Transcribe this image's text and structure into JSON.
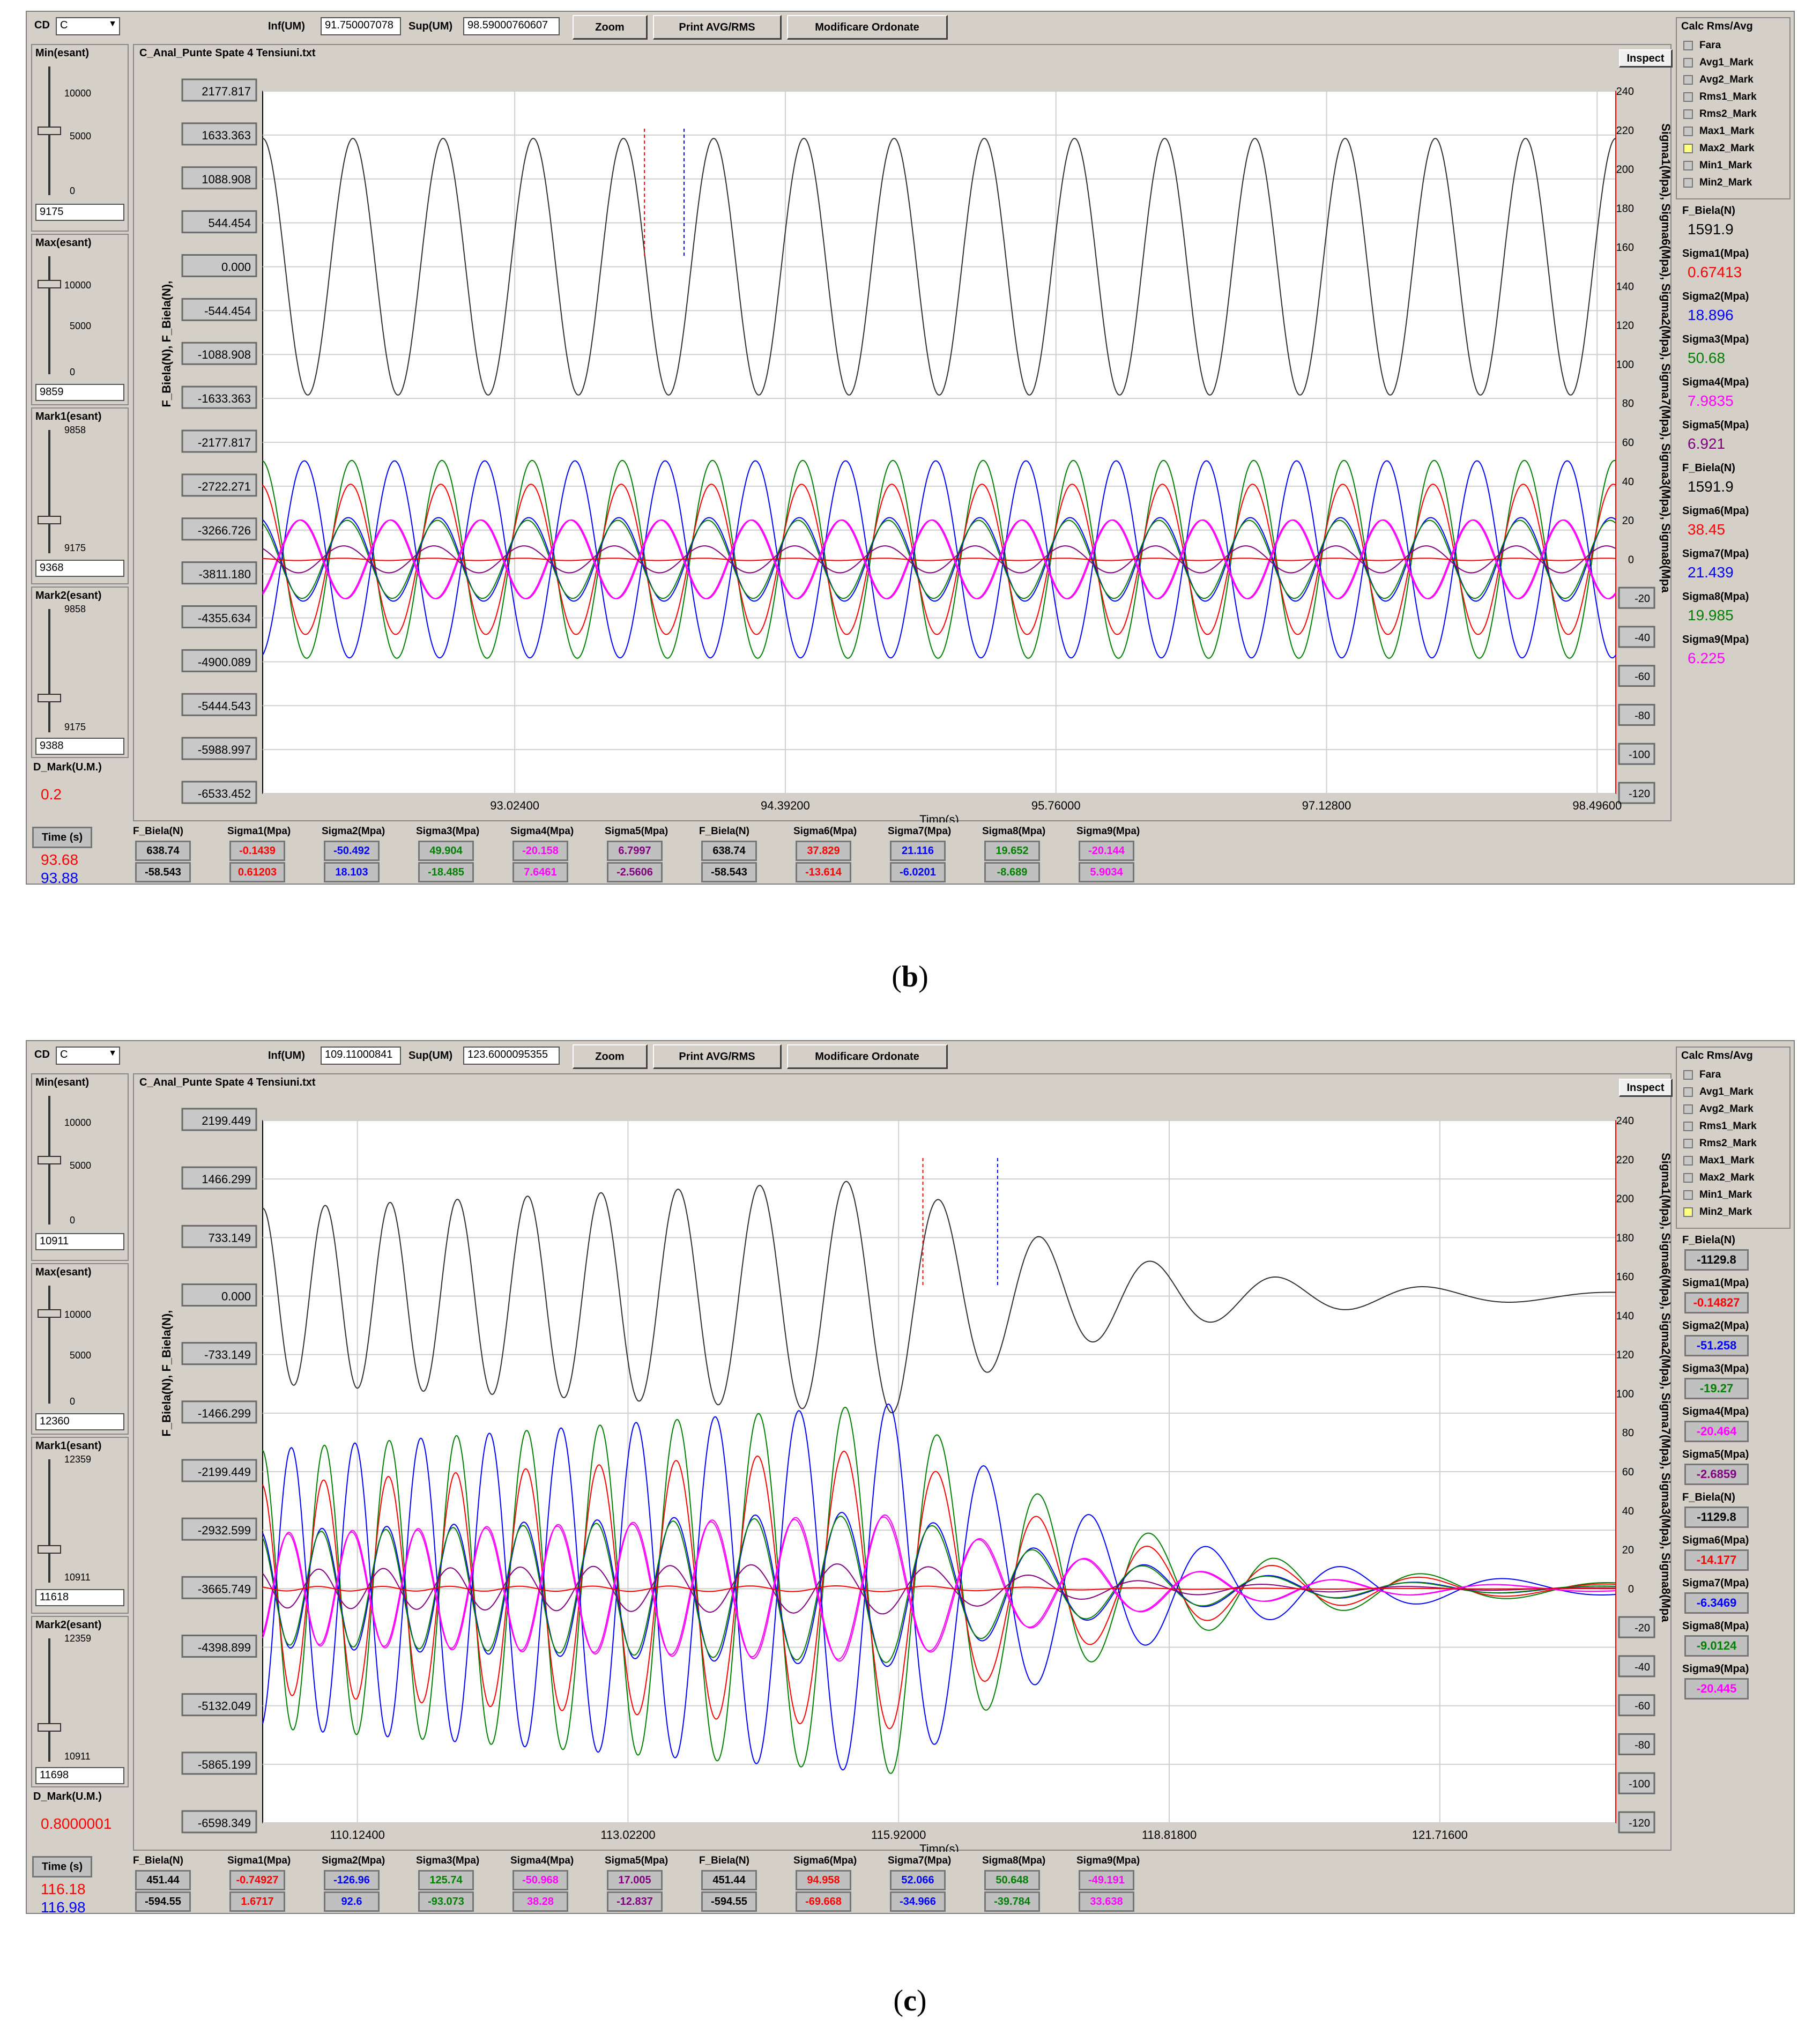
{
  "panels": [
    {
      "id": "b",
      "caption": "b",
      "cd_label": "CD",
      "cd_value": "C",
      "inf_label": "Inf(UM)",
      "inf_value": "91.750007078",
      "sup_label": "Sup(UM)",
      "sup_value": "98.59000760607",
      "zoom_label": "Zoom",
      "print_label": "Print AVG/RMS",
      "modify_label": "Modificare Ordonate",
      "file_title": "C_Anal_Punte Spate 4 Tensiuni.txt",
      "inspect_label": "Inspect",
      "min_label": "Min(esant)",
      "min_ticks": [
        "10000",
        "5000",
        "0"
      ],
      "min_value": "9175",
      "max_label": "Max(esant)",
      "max_ticks": [
        "10000",
        "5000",
        "0"
      ],
      "max_value": "9859",
      "mark1_label": "Mark1(esant)",
      "mark1_top": "9858",
      "mark1_bottom": "9175",
      "mark1_value": "9368",
      "mark2_label": "Mark2(esant)",
      "mark2_top": "9858",
      "mark2_bottom": "9175",
      "mark2_value": "9388",
      "dmark_label": "D_Mark(U.M.)",
      "dmark_value": "0.2",
      "time_label": "Time (s)",
      "time1": "93.68",
      "time2": "93.88",
      "left_axis_label": "F_Biela(N), F_Biela(N),",
      "right_axis_label": "Sigma1(Mpa), Sigma6(Mpa), Sigma2(Mpa), Sigma7(Mpa), Sigma3(Mpa), Sigma8(Mpa",
      "x_axis_label": "Timp(s)",
      "left_ticks": [
        "2177.817",
        "1633.363",
        "1088.908",
        "544.454",
        "0.000",
        "-544.454",
        "-1088.908",
        "-1633.363",
        "-2177.817",
        "-2722.271",
        "-3266.726",
        "-3811.180",
        "-4355.634",
        "-4900.089",
        "-5444.543",
        "-5988.997",
        "-6533.452"
      ],
      "right_ticks": [
        "240",
        "220",
        "200",
        "180",
        "160",
        "140",
        "120",
        "100",
        "80",
        "60",
        "40",
        "20",
        "0",
        "-20",
        "-40",
        "-60",
        "-80",
        "-100",
        "-120"
      ],
      "right_boxed": [
        "-20",
        "-40",
        "-60",
        "-80",
        "-100",
        "-120"
      ],
      "x_ticks": [
        "93.02400",
        "94.39200",
        "95.76000",
        "97.12800",
        "98.49600"
      ],
      "calc_title": "Calc Rms/Avg",
      "calc_options": [
        "Fara",
        "Avg1_Mark",
        "Avg2_Mark",
        "Rms1_Mark",
        "Rms2_Mark",
        "Max1_Mark",
        "Max2_Mark",
        "Min1_Mark",
        "Min2_Mark"
      ],
      "calc_selected": "Max2_Mark",
      "readout": [
        {
          "name": "F_Biela(N)",
          "value": "1591.9",
          "color": "#000000",
          "boxed": false
        },
        {
          "name": "Sigma1(Mpa)",
          "value": "0.67413",
          "color": "#ff0000",
          "boxed": false
        },
        {
          "name": "Sigma2(Mpa)",
          "value": "18.896",
          "color": "#0000ff",
          "boxed": false
        },
        {
          "name": "Sigma3(Mpa)",
          "value": "50.68",
          "color": "#008000",
          "boxed": false
        },
        {
          "name": "Sigma4(Mpa)",
          "value": "7.9835",
          "color": "#ff00ff",
          "boxed": false
        },
        {
          "name": "Sigma5(Mpa)",
          "value": "6.921",
          "color": "#800080",
          "boxed": false
        },
        {
          "name": "F_Biela(N)",
          "value": "1591.9",
          "color": "#000000",
          "boxed": false
        },
        {
          "name": "Sigma6(Mpa)",
          "value": "38.45",
          "color": "#ff0000",
          "boxed": false
        },
        {
          "name": "Sigma7(Mpa)",
          "value": "21.439",
          "color": "#0000ff",
          "boxed": false
        },
        {
          "name": "Sigma8(Mpa)",
          "value": "19.985",
          "color": "#008000",
          "boxed": false
        },
        {
          "name": "Sigma9(Mpa)",
          "value": "6.225",
          "color": "#ff00ff",
          "boxed": false
        }
      ],
      "bottom_table": [
        {
          "name": "F_Biela(N)",
          "v1": "638.74",
          "v2": "-58.543",
          "color": "#000000"
        },
        {
          "name": "Sigma1(Mpa)",
          "v1": "-0.1439",
          "v2": "0.61203",
          "color": "#ff0000"
        },
        {
          "name": "Sigma2(Mpa)",
          "v1": "-50.492",
          "v2": "18.103",
          "color": "#0000ff"
        },
        {
          "name": "Sigma3(Mpa)",
          "v1": "49.904",
          "v2": "-18.485",
          "color": "#008000"
        },
        {
          "name": "Sigma4(Mpa)",
          "v1": "-20.158",
          "v2": "7.6461",
          "color": "#ff00ff"
        },
        {
          "name": "Sigma5(Mpa)",
          "v1": "6.7997",
          "v2": "-2.5606",
          "color": "#800080"
        },
        {
          "name": "F_Biela(N)",
          "v1": "638.74",
          "v2": "-58.543",
          "color": "#000000"
        },
        {
          "name": "Sigma6(Mpa)",
          "v1": "37.829",
          "v2": "-13.614",
          "color": "#ff0000"
        },
        {
          "name": "Sigma7(Mpa)",
          "v1": "21.116",
          "v2": "-6.0201",
          "color": "#0000ff"
        },
        {
          "name": "Sigma8(Mpa)",
          "v1": "19.652",
          "v2": "-8.689",
          "color": "#008000"
        },
        {
          "name": "Sigma9(Mpa)",
          "v1": "-20.144",
          "v2": "5.9034",
          "color": "#ff00ff"
        }
      ],
      "chart_data": {
        "type": "line",
        "x_range": [
          91.75,
          98.59
        ],
        "left_ylim": [
          -6533.452,
          2177.817
        ],
        "right_ylim": [
          -120,
          240
        ],
        "grid": true,
        "cursor_red_x": 93.68,
        "cursor_blue_x": 93.88,
        "signal": "steady",
        "cycles": 15,
        "series": [
          {
            "name": "F_Biela(N)",
            "color": "#303030",
            "axis": "left",
            "offset": 0,
            "amplitude": 1591.9
          },
          {
            "name": "Sigma3(Mpa)",
            "color": "#008000",
            "axis": "right",
            "offset": 0,
            "amplitude": 50.7
          },
          {
            "name": "Sigma6(Mpa)",
            "color": "#ff0000",
            "axis": "right",
            "offset": 0,
            "amplitude": 38.5
          },
          {
            "name": "Sigma2(Mpa)",
            "color": "#0000ff",
            "axis": "right",
            "offset": 0,
            "amplitude": -50.5
          },
          {
            "name": "Sigma7(Mpa)",
            "color": "#0000ff",
            "axis": "right",
            "offset": 0,
            "amplitude": 21.4
          },
          {
            "name": "Sigma8(Mpa)",
            "color": "#008000",
            "axis": "right",
            "offset": 0,
            "amplitude": 20.0
          },
          {
            "name": "Sigma4(Mpa)",
            "color": "#ff00ff",
            "axis": "right",
            "offset": 0,
            "amplitude": -20.2
          },
          {
            "name": "Sigma9(Mpa)",
            "color": "#ff00ff",
            "axis": "right",
            "offset": 0,
            "amplitude": -20.1
          },
          {
            "name": "Sigma5(Mpa)",
            "color": "#800080",
            "axis": "right",
            "offset": 0,
            "amplitude": 6.9
          },
          {
            "name": "Sigma1(Mpa)",
            "color": "#ff0000",
            "axis": "right",
            "offset": 0,
            "amplitude": 0.6
          }
        ]
      }
    },
    {
      "id": "c",
      "caption": "c",
      "cd_label": "CD",
      "cd_value": "C",
      "inf_label": "Inf(UM)",
      "inf_value": "109.11000841",
      "sup_label": "Sup(UM)",
      "sup_value": "123.6000095355",
      "zoom_label": "Zoom",
      "print_label": "Print AVG/RMS",
      "modify_label": "Modificare Ordonate",
      "file_title": "C_Anal_Punte Spate 4 Tensiuni.txt",
      "inspect_label": "Inspect",
      "min_label": "Min(esant)",
      "min_ticks": [
        "10000",
        "5000",
        "0"
      ],
      "min_value": "10911",
      "max_label": "Max(esant)",
      "max_ticks": [
        "10000",
        "5000",
        "0"
      ],
      "max_value": "12360",
      "mark1_label": "Mark1(esant)",
      "mark1_top": "12359",
      "mark1_bottom": "10911",
      "mark1_value": "11618",
      "mark2_label": "Mark2(esant)",
      "mark2_top": "12359",
      "mark2_bottom": "10911",
      "mark2_value": "11698",
      "dmark_label": "D_Mark(U.M.)",
      "dmark_value": "0.8000001",
      "time_label": "Time (s)",
      "time1": "116.18",
      "time2": "116.98",
      "left_axis_label": "F_Biela(N), F_Biela(N),",
      "right_axis_label": "Sigma1(Mpa), Sigma6(Mpa), Sigma2(Mpa), Sigma7(Mpa), Sigma3(Mpa), Sigma8(Mpa",
      "x_axis_label": "Timp(s)",
      "left_ticks": [
        "2199.449",
        "1466.299",
        "733.149",
        "0.000",
        "-733.149",
        "-1466.299",
        "-2199.449",
        "-2932.599",
        "-3665.749",
        "-4398.899",
        "-5132.049",
        "-5865.199",
        "-6598.349"
      ],
      "right_ticks": [
        "240",
        "220",
        "200",
        "180",
        "160",
        "140",
        "120",
        "100",
        "80",
        "60",
        "40",
        "20",
        "0",
        "-20",
        "-40",
        "-60",
        "-80",
        "-100",
        "-120"
      ],
      "right_boxed": [
        "-20",
        "-40",
        "-60",
        "-80",
        "-100",
        "-120"
      ],
      "x_ticks": [
        "110.12400",
        "113.02200",
        "115.92000",
        "118.81800",
        "121.71600"
      ],
      "calc_title": "Calc Rms/Avg",
      "calc_options": [
        "Fara",
        "Avg1_Mark",
        "Avg2_Mark",
        "Rms1_Mark",
        "Rms2_Mark",
        "Max1_Mark",
        "Max2_Mark",
        "Min1_Mark",
        "Min2_Mark"
      ],
      "calc_selected": "Min2_Mark",
      "readout": [
        {
          "name": "F_Biela(N)",
          "value": "-1129.8",
          "color": "#000000",
          "boxed": true
        },
        {
          "name": "Sigma1(Mpa)",
          "value": "-0.14827",
          "color": "#ff0000",
          "boxed": true
        },
        {
          "name": "Sigma2(Mpa)",
          "value": "-51.258",
          "color": "#0000ff",
          "boxed": true
        },
        {
          "name": "Sigma3(Mpa)",
          "value": "-19.27",
          "color": "#008000",
          "boxed": true
        },
        {
          "name": "Sigma4(Mpa)",
          "value": "-20.464",
          "color": "#ff00ff",
          "boxed": true
        },
        {
          "name": "Sigma5(Mpa)",
          "value": "-2.6859",
          "color": "#800080",
          "boxed": true
        },
        {
          "name": "F_Biela(N)",
          "value": "-1129.8",
          "color": "#000000",
          "boxed": true
        },
        {
          "name": "Sigma6(Mpa)",
          "value": "-14.177",
          "color": "#ff0000",
          "boxed": true
        },
        {
          "name": "Sigma7(Mpa)",
          "value": "-6.3469",
          "color": "#0000ff",
          "boxed": true
        },
        {
          "name": "Sigma8(Mpa)",
          "value": "-9.0124",
          "color": "#008000",
          "boxed": true
        },
        {
          "name": "Sigma9(Mpa)",
          "value": "-20.445",
          "color": "#ff00ff",
          "boxed": true
        }
      ],
      "bottom_table": [
        {
          "name": "F_Biela(N)",
          "v1": "451.44",
          "v2": "-594.55",
          "color": "#000000"
        },
        {
          "name": "Sigma1(Mpa)",
          "v1": "-0.74927",
          "v2": "1.6717",
          "color": "#ff0000"
        },
        {
          "name": "Sigma2(Mpa)",
          "v1": "-126.96",
          "v2": "92.6",
          "color": "#0000ff"
        },
        {
          "name": "Sigma3(Mpa)",
          "v1": "125.74",
          "v2": "-93.073",
          "color": "#008000"
        },
        {
          "name": "Sigma4(Mpa)",
          "v1": "-50.968",
          "v2": "38.28",
          "color": "#ff00ff"
        },
        {
          "name": "Sigma5(Mpa)",
          "v1": "17.005",
          "v2": "-12.837",
          "color": "#800080"
        },
        {
          "name": "F_Biela(N)",
          "v1": "451.44",
          "v2": "-594.55",
          "color": "#000000"
        },
        {
          "name": "Sigma6(Mpa)",
          "v1": "94.958",
          "v2": "-69.668",
          "color": "#ff0000"
        },
        {
          "name": "Sigma7(Mpa)",
          "v1": "52.066",
          "v2": "-34.966",
          "color": "#0000ff"
        },
        {
          "name": "Sigma8(Mpa)",
          "v1": "50.648",
          "v2": "-39.784",
          "color": "#008000"
        },
        {
          "name": "Sigma9(Mpa)",
          "v1": "-49.191",
          "v2": "33.638",
          "color": "#ff00ff"
        }
      ],
      "chart_data": {
        "type": "line",
        "x_range": [
          109.11,
          123.6
        ],
        "left_ylim": [
          -6598.349,
          2199.449
        ],
        "right_ylim": [
          -120,
          240
        ],
        "grid": true,
        "cursor_red_x": 116.18,
        "cursor_blue_x": 116.98,
        "signal": "sweep-decay",
        "series": [
          {
            "name": "F_Biela(N)",
            "color": "#303030",
            "axis": "left",
            "offset": 0,
            "amplitude": 1466
          },
          {
            "name": "Sigma3(Mpa)",
            "color": "#008000",
            "axis": "right",
            "offset": 0,
            "amplitude": 95
          },
          {
            "name": "Sigma6(Mpa)",
            "color": "#ff0000",
            "axis": "right",
            "offset": 0,
            "amplitude": 72
          },
          {
            "name": "Sigma2(Mpa)",
            "color": "#0000ff",
            "axis": "right",
            "offset": 0,
            "amplitude": -95
          },
          {
            "name": "Sigma7(Mpa)",
            "color": "#0000ff",
            "axis": "right",
            "offset": 0,
            "amplitude": 40
          },
          {
            "name": "Sigma8(Mpa)",
            "color": "#008000",
            "axis": "right",
            "offset": 0,
            "amplitude": 38
          },
          {
            "name": "Sigma4(Mpa)",
            "color": "#ff00ff",
            "axis": "right",
            "offset": 0,
            "amplitude": -38
          },
          {
            "name": "Sigma9(Mpa)",
            "color": "#ff00ff",
            "axis": "right",
            "offset": 0,
            "amplitude": -37
          },
          {
            "name": "Sigma5(Mpa)",
            "color": "#800080",
            "axis": "right",
            "offset": 0,
            "amplitude": 13
          },
          {
            "name": "Sigma1(Mpa)",
            "color": "#ff0000",
            "axis": "right",
            "offset": 0,
            "amplitude": 1.5
          }
        ]
      }
    }
  ]
}
